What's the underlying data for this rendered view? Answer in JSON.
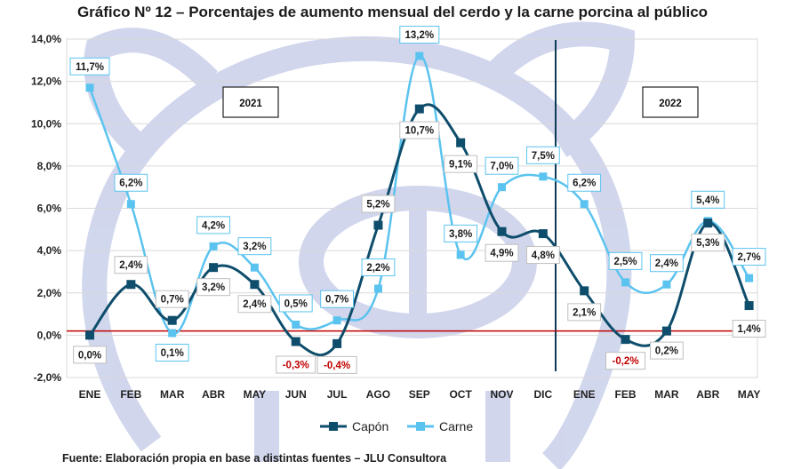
{
  "chart_data": {
    "type": "line",
    "title": "Gráfico Nº 12 – Porcentajes de aumento mensual del cerdo y la carne porcina al público",
    "categories": [
      "ENE",
      "FEB",
      "MAR",
      "ABR",
      "MAY",
      "JUN",
      "JUL",
      "AGO",
      "SEP",
      "OCT",
      "NOV",
      "DIC",
      "ENE",
      "FEB",
      "MAR",
      "ABR",
      "MAY"
    ],
    "series": [
      {
        "name": "Capón",
        "values": [
          0.0,
          2.4,
          0.7,
          3.2,
          2.4,
          -0.3,
          -0.4,
          5.2,
          10.7,
          9.1,
          4.9,
          4.8,
          2.1,
          -0.2,
          0.2,
          5.3,
          1.4
        ],
        "labels": [
          "0,0%",
          "2,4%",
          "0,7%",
          "3,2%",
          "2,4%",
          "-0,3%",
          "-0,4%",
          "5,2%",
          "10,7%",
          "9,1%",
          "4,9%",
          "4,8%",
          "2,1%",
          "-0,2%",
          "0,2%",
          "5,3%",
          "1,4%"
        ]
      },
      {
        "name": "Carne",
        "values": [
          11.7,
          6.2,
          0.1,
          4.2,
          3.2,
          0.5,
          0.7,
          2.2,
          13.2,
          3.8,
          7.0,
          7.5,
          6.2,
          2.5,
          2.4,
          5.4,
          2.7
        ],
        "labels": [
          "11,7%",
          "6,2%",
          "0,1%",
          "4,2%",
          "3,2%",
          "0,5%",
          "0,7%",
          "2,2%",
          "13,2%",
          "3,8%",
          "7,0%",
          "7,5%",
          "6,2%",
          "2,5%",
          "2,4%",
          "5,4%",
          "2,7%"
        ]
      }
    ],
    "y_ticks": [
      "-2,0%",
      "0,0%",
      "2,0%",
      "4,0%",
      "6,0%",
      "8,0%",
      "10,0%",
      "12,0%",
      "14,0%"
    ],
    "ylim": [
      -2,
      14
    ],
    "grid": true,
    "legend": "bottom",
    "year_labels": [
      "2021",
      "2022"
    ],
    "colors": {
      "capon": "#0e4d6b",
      "carne": "#5bc3ef",
      "negative_label": "#c00000",
      "baseline": "#c00000",
      "watermark": "#c9d0ea"
    }
  },
  "source": "Fuente: Elaboración propia en base a distintas fuentes – JLU Consultora"
}
